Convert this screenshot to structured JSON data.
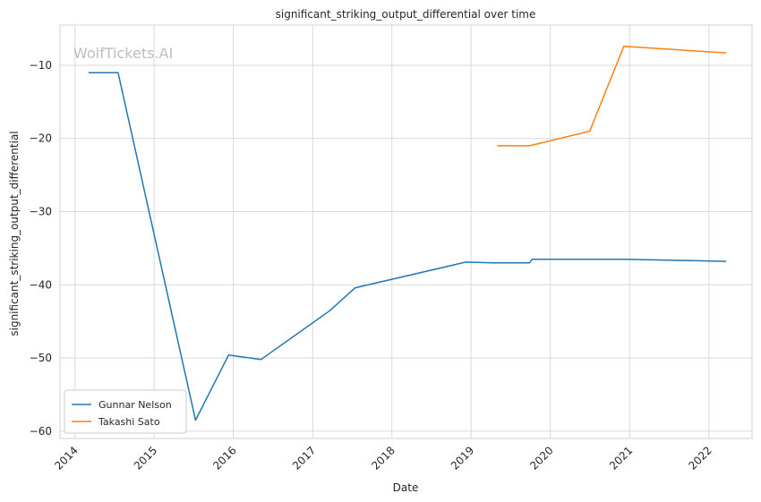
{
  "chart_data": {
    "type": "line",
    "title": "significant_striking_output_differential over time",
    "xlabel": "Date",
    "ylabel": "significant_striking_output_differential",
    "watermark": "WolfTickets.AI",
    "x_ticks": [
      "2014",
      "2015",
      "2016",
      "2017",
      "2018",
      "2019",
      "2020",
      "2021",
      "2022"
    ],
    "y_ticks": [
      -60,
      -50,
      -40,
      -30,
      -20,
      -10
    ],
    "xlim": [
      "2013-10-24",
      "2022-07-19"
    ],
    "ylim": [
      -61,
      -4.5
    ],
    "grid": true,
    "legend_position": "lower-left",
    "series": [
      {
        "name": "Gunnar Nelson",
        "color": "#1f77b4",
        "points": [
          {
            "x": "2014-03-08",
            "y": -11.0
          },
          {
            "x": "2014-07-19",
            "y": -11.0
          },
          {
            "x": "2015-07-11",
            "y": -58.5
          },
          {
            "x": "2015-12-10",
            "y": -49.6
          },
          {
            "x": "2016-05-08",
            "y": -50.2
          },
          {
            "x": "2017-03-18",
            "y": -43.6
          },
          {
            "x": "2017-07-16",
            "y": -40.4
          },
          {
            "x": "2018-12-08",
            "y": -36.9
          },
          {
            "x": "2019-04-10",
            "y": -37.0
          },
          {
            "x": "2019-09-28",
            "y": -37.0
          },
          {
            "x": "2019-10-10",
            "y": -36.5
          },
          {
            "x": "2020-12-13",
            "y": -36.5
          },
          {
            "x": "2022-03-19",
            "y": -36.8
          }
        ]
      },
      {
        "name": "Takashi Sato",
        "color": "#ff7f0e",
        "points": [
          {
            "x": "2019-05-04",
            "y": -21.0
          },
          {
            "x": "2019-09-28",
            "y": -21.0
          },
          {
            "x": "2020-07-01",
            "y": -19.0
          },
          {
            "x": "2020-12-05",
            "y": -7.4
          },
          {
            "x": "2022-03-19",
            "y": -8.3
          }
        ]
      }
    ]
  }
}
